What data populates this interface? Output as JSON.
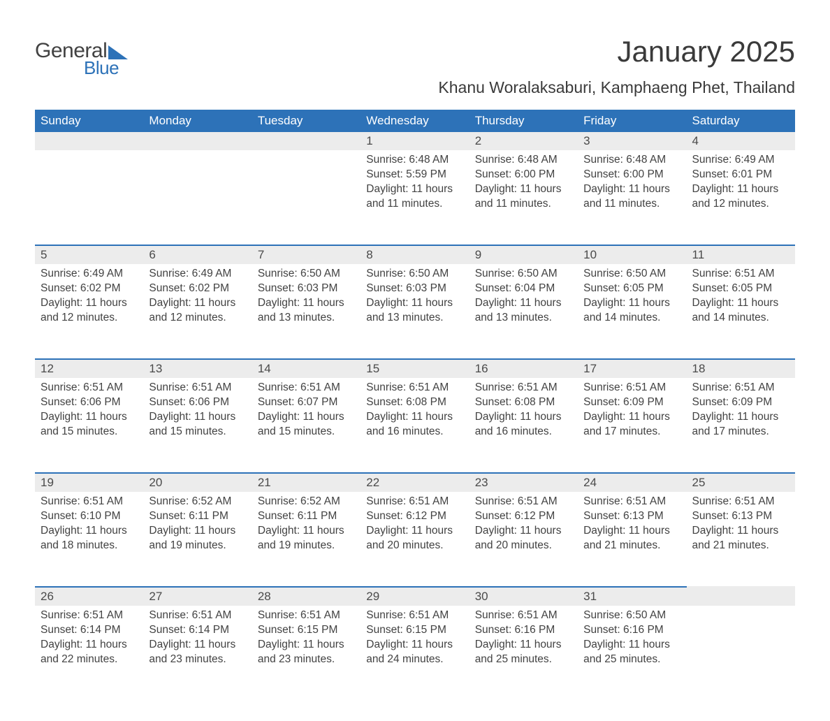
{
  "logo": {
    "text_general": "General",
    "text_blue": "Blue",
    "triangle_color": "#2d72b8"
  },
  "title": "January 2025",
  "location": "Khanu Woralaksaburi, Kamphaeng Phet, Thailand",
  "colors": {
    "header_bg": "#2d72b8",
    "header_text": "#ffffff",
    "daynum_bg": "#ececec",
    "row_divider": "#2d72b8",
    "body_text": "#424242",
    "page_bg": "#ffffff"
  },
  "typography": {
    "title_fontsize": 42,
    "location_fontsize": 23,
    "header_fontsize": 17,
    "daynum_fontsize": 17,
    "body_fontsize": 15.5,
    "font_family": "Arial"
  },
  "day_headers": [
    "Sunday",
    "Monday",
    "Tuesday",
    "Wednesday",
    "Thursday",
    "Friday",
    "Saturday"
  ],
  "weeks": [
    [
      null,
      null,
      null,
      {
        "n": "1",
        "sunrise": "6:48 AM",
        "sunset": "5:59 PM",
        "daylight": "11 hours and 11 minutes."
      },
      {
        "n": "2",
        "sunrise": "6:48 AM",
        "sunset": "6:00 PM",
        "daylight": "11 hours and 11 minutes."
      },
      {
        "n": "3",
        "sunrise": "6:48 AM",
        "sunset": "6:00 PM",
        "daylight": "11 hours and 11 minutes."
      },
      {
        "n": "4",
        "sunrise": "6:49 AM",
        "sunset": "6:01 PM",
        "daylight": "11 hours and 12 minutes."
      }
    ],
    [
      {
        "n": "5",
        "sunrise": "6:49 AM",
        "sunset": "6:02 PM",
        "daylight": "11 hours and 12 minutes."
      },
      {
        "n": "6",
        "sunrise": "6:49 AM",
        "sunset": "6:02 PM",
        "daylight": "11 hours and 12 minutes."
      },
      {
        "n": "7",
        "sunrise": "6:50 AM",
        "sunset": "6:03 PM",
        "daylight": "11 hours and 13 minutes."
      },
      {
        "n": "8",
        "sunrise": "6:50 AM",
        "sunset": "6:03 PM",
        "daylight": "11 hours and 13 minutes."
      },
      {
        "n": "9",
        "sunrise": "6:50 AM",
        "sunset": "6:04 PM",
        "daylight": "11 hours and 13 minutes."
      },
      {
        "n": "10",
        "sunrise": "6:50 AM",
        "sunset": "6:05 PM",
        "daylight": "11 hours and 14 minutes."
      },
      {
        "n": "11",
        "sunrise": "6:51 AM",
        "sunset": "6:05 PM",
        "daylight": "11 hours and 14 minutes."
      }
    ],
    [
      {
        "n": "12",
        "sunrise": "6:51 AM",
        "sunset": "6:06 PM",
        "daylight": "11 hours and 15 minutes."
      },
      {
        "n": "13",
        "sunrise": "6:51 AM",
        "sunset": "6:06 PM",
        "daylight": "11 hours and 15 minutes."
      },
      {
        "n": "14",
        "sunrise": "6:51 AM",
        "sunset": "6:07 PM",
        "daylight": "11 hours and 15 minutes."
      },
      {
        "n": "15",
        "sunrise": "6:51 AM",
        "sunset": "6:08 PM",
        "daylight": "11 hours and 16 minutes."
      },
      {
        "n": "16",
        "sunrise": "6:51 AM",
        "sunset": "6:08 PM",
        "daylight": "11 hours and 16 minutes."
      },
      {
        "n": "17",
        "sunrise": "6:51 AM",
        "sunset": "6:09 PM",
        "daylight": "11 hours and 17 minutes."
      },
      {
        "n": "18",
        "sunrise": "6:51 AM",
        "sunset": "6:09 PM",
        "daylight": "11 hours and 17 minutes."
      }
    ],
    [
      {
        "n": "19",
        "sunrise": "6:51 AM",
        "sunset": "6:10 PM",
        "daylight": "11 hours and 18 minutes."
      },
      {
        "n": "20",
        "sunrise": "6:52 AM",
        "sunset": "6:11 PM",
        "daylight": "11 hours and 19 minutes."
      },
      {
        "n": "21",
        "sunrise": "6:52 AM",
        "sunset": "6:11 PM",
        "daylight": "11 hours and 19 minutes."
      },
      {
        "n": "22",
        "sunrise": "6:51 AM",
        "sunset": "6:12 PM",
        "daylight": "11 hours and 20 minutes."
      },
      {
        "n": "23",
        "sunrise": "6:51 AM",
        "sunset": "6:12 PM",
        "daylight": "11 hours and 20 minutes."
      },
      {
        "n": "24",
        "sunrise": "6:51 AM",
        "sunset": "6:13 PM",
        "daylight": "11 hours and 21 minutes."
      },
      {
        "n": "25",
        "sunrise": "6:51 AM",
        "sunset": "6:13 PM",
        "daylight": "11 hours and 21 minutes."
      }
    ],
    [
      {
        "n": "26",
        "sunrise": "6:51 AM",
        "sunset": "6:14 PM",
        "daylight": "11 hours and 22 minutes."
      },
      {
        "n": "27",
        "sunrise": "6:51 AM",
        "sunset": "6:14 PM",
        "daylight": "11 hours and 23 minutes."
      },
      {
        "n": "28",
        "sunrise": "6:51 AM",
        "sunset": "6:15 PM",
        "daylight": "11 hours and 23 minutes."
      },
      {
        "n": "29",
        "sunrise": "6:51 AM",
        "sunset": "6:15 PM",
        "daylight": "11 hours and 24 minutes."
      },
      {
        "n": "30",
        "sunrise": "6:51 AM",
        "sunset": "6:16 PM",
        "daylight": "11 hours and 25 minutes."
      },
      {
        "n": "31",
        "sunrise": "6:50 AM",
        "sunset": "6:16 PM",
        "daylight": "11 hours and 25 minutes."
      },
      null
    ]
  ],
  "labels": {
    "sunrise": "Sunrise:",
    "sunset": "Sunset:",
    "daylight": "Daylight:"
  }
}
